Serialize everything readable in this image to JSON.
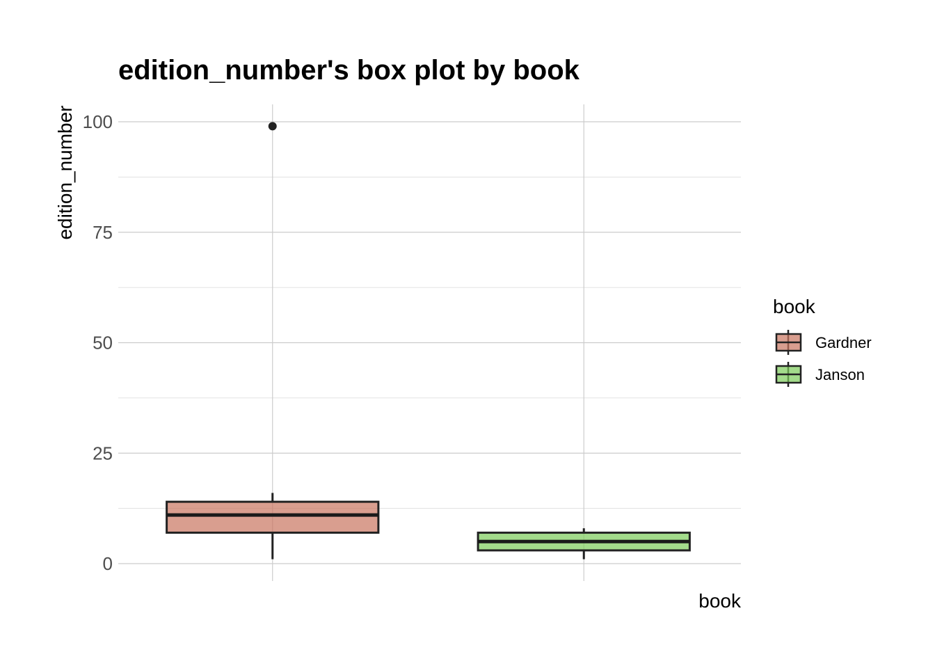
{
  "chart_data": {
    "type": "box",
    "title": "edition_number's box plot by book",
    "xlabel": "book",
    "ylabel": "edition_number",
    "categories": [
      "Gardner",
      "Janson"
    ],
    "yticks": [
      0,
      25,
      50,
      75,
      100
    ],
    "ylim": [
      -3.8,
      104
    ],
    "grid": true,
    "legend": {
      "title": "book",
      "position": "right",
      "entries": [
        "Gardner",
        "Janson"
      ]
    },
    "boxes": [
      {
        "name": "Gardner",
        "color": "#c97560",
        "whisker_low": 1,
        "q1": 7,
        "median": 11,
        "q3": 14,
        "whisker_high": 16,
        "outliers": [
          99
        ]
      },
      {
        "name": "Janson",
        "color": "#7ccc5a",
        "whisker_low": 1,
        "q1": 3,
        "median": 5,
        "q3": 7,
        "whisker_high": 8,
        "outliers": []
      }
    ]
  }
}
